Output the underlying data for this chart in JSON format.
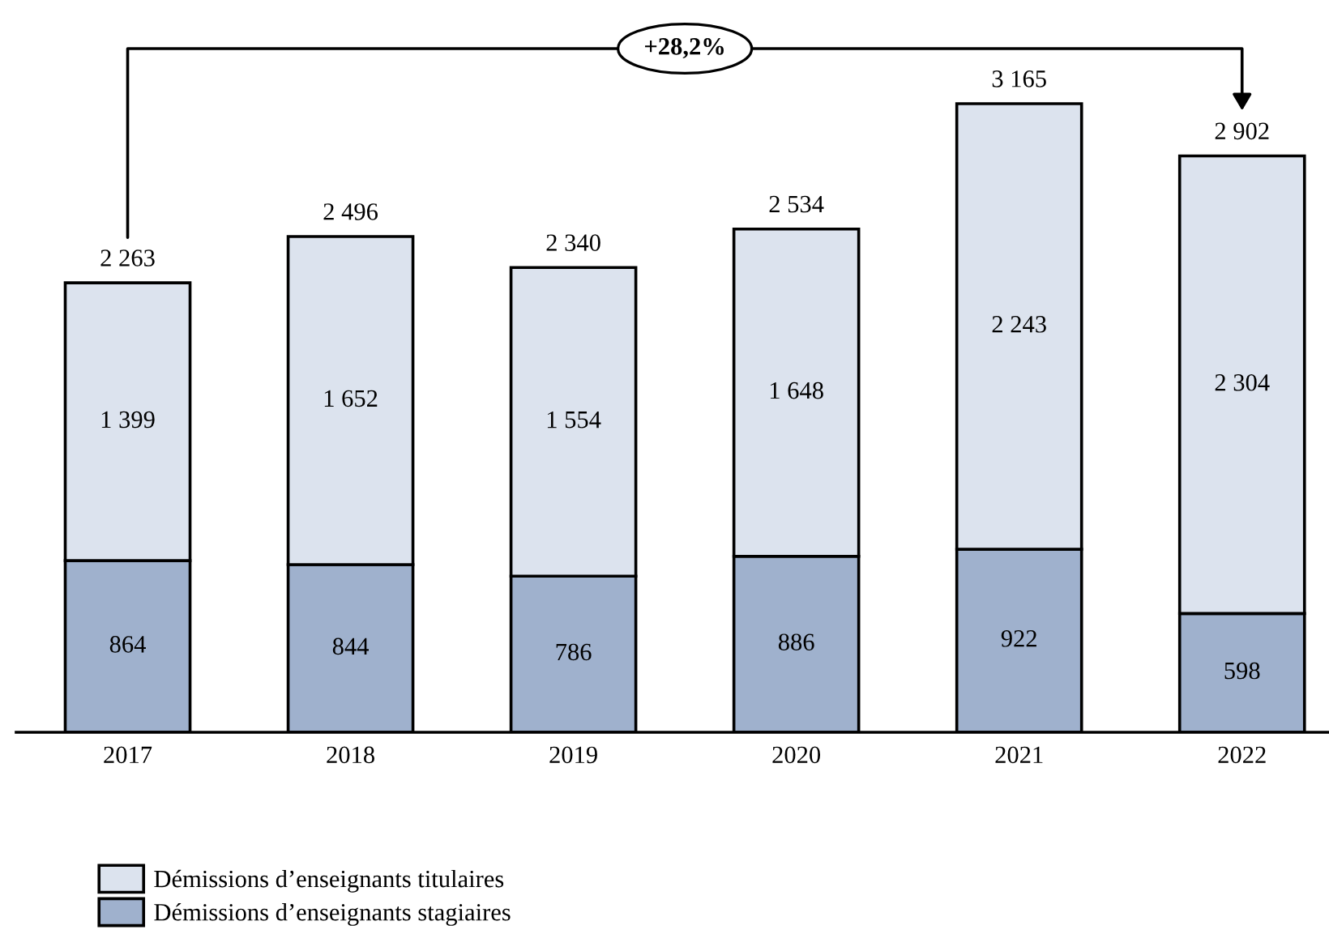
{
  "chart_data": {
    "type": "bar",
    "stacked": true,
    "categories": [
      "2017",
      "2018",
      "2019",
      "2020",
      "2021",
      "2022"
    ],
    "series": [
      {
        "name": "Démissions d’enseignants stagiaires",
        "color": "#9fb1cd",
        "values": [
          864,
          844,
          786,
          886,
          922,
          598
        ],
        "value_labels": [
          "864",
          "844",
          "786",
          "886",
          "922",
          "598"
        ]
      },
      {
        "name": "Démissions d’enseignants titulaires",
        "color": "#dce3ee",
        "values": [
          1399,
          1652,
          1554,
          1648,
          2243,
          2304
        ],
        "value_labels": [
          "1 399",
          "1 652",
          "1 554",
          "1 648",
          "2 243",
          "2 304"
        ]
      }
    ],
    "totals": [
      "2 263",
      "2 496",
      "2 340",
      "2 534",
      "3 165",
      "2 902"
    ],
    "annotations": [
      "+28,2%"
    ],
    "legend": "bottom left",
    "tick_labels": "x",
    "grid": false
  }
}
